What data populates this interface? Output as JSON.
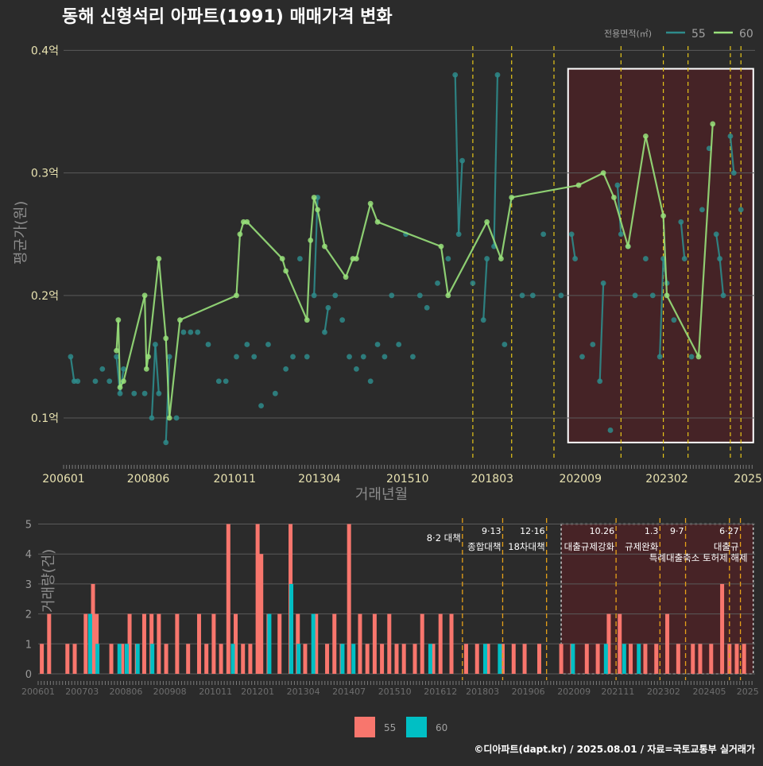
{
  "title": "동해 신형석리 아파트(1991) 매매가격 변화",
  "footer": "©디아파트(dapt.kr) / 2025.08.01 / 자료=국토교통부 실거래가",
  "colors": {
    "background": "#2b2b2b",
    "series_55": "#2e8b8b",
    "series_60": "#98e07a",
    "bar_55": "#f8766d",
    "bar_60": "#00bfc4",
    "policy_line": "#e6c619",
    "highlight_fill": "#4a2226"
  },
  "chart_data": [
    {
      "type": "line",
      "title": "동해 신형석리 아파트(1991) 매매가격 변화",
      "xlabel": "거래년월",
      "ylabel": "평균가(원)",
      "x_ticks": [
        "200601",
        "200806",
        "201011",
        "201304",
        "201510",
        "201803",
        "202009",
        "202302",
        "2025"
      ],
      "y_ticks": [
        {
          "v": 0.1,
          "label": "0.1억"
        },
        {
          "v": 0.2,
          "label": "0.2억"
        },
        {
          "v": 0.3,
          "label": "0.3억"
        },
        {
          "v": 0.4,
          "label": "0.4억"
        }
      ],
      "xlim": [
        2006.0,
        2025.6
      ],
      "ylim": [
        0.065,
        0.41
      ],
      "grid": true,
      "legend": {
        "title": "전용면적(㎡)",
        "position": "top-right",
        "entries": [
          "55",
          "60"
        ]
      },
      "series": [
        {
          "name": "55",
          "values": [
            [
              2006.2,
              0.15
            ],
            [
              2006.3,
              0.13
            ],
            [
              2006.4,
              0.13
            ],
            [
              2006.9,
              0.13
            ],
            [
              2007.1,
              0.14
            ],
            [
              2007.3,
              0.13
            ],
            [
              2007.5,
              0.15
            ],
            [
              2007.6,
              0.12
            ],
            [
              2007.7,
              0.14
            ],
            [
              2008.0,
              0.12
            ],
            [
              2008.3,
              0.12
            ],
            [
              2008.5,
              0.1
            ],
            [
              2008.6,
              0.16
            ],
            [
              2008.7,
              0.12
            ],
            [
              2008.9,
              0.08
            ],
            [
              2009.0,
              0.15
            ],
            [
              2009.2,
              0.1
            ],
            [
              2009.4,
              0.17
            ],
            [
              2009.6,
              0.17
            ],
            [
              2009.8,
              0.17
            ],
            [
              2010.1,
              0.16
            ],
            [
              2010.4,
              0.13
            ],
            [
              2010.6,
              0.13
            ],
            [
              2010.9,
              0.15
            ],
            [
              2011.2,
              0.16
            ],
            [
              2011.4,
              0.15
            ],
            [
              2011.6,
              0.11
            ],
            [
              2011.8,
              0.16
            ],
            [
              2012.0,
              0.12
            ],
            [
              2012.3,
              0.14
            ],
            [
              2012.5,
              0.15
            ],
            [
              2012.7,
              0.23
            ],
            [
              2012.9,
              0.15
            ],
            [
              2013.1,
              0.2
            ],
            [
              2013.2,
              0.28
            ],
            [
              2013.4,
              0.17
            ],
            [
              2013.5,
              0.19
            ],
            [
              2013.7,
              0.2
            ],
            [
              2013.9,
              0.18
            ],
            [
              2014.1,
              0.15
            ],
            [
              2014.3,
              0.14
            ],
            [
              2014.5,
              0.15
            ],
            [
              2014.7,
              0.13
            ],
            [
              2014.9,
              0.16
            ],
            [
              2015.1,
              0.15
            ],
            [
              2015.3,
              0.2
            ],
            [
              2015.5,
              0.16
            ],
            [
              2015.7,
              0.25
            ],
            [
              2015.9,
              0.15
            ],
            [
              2016.1,
              0.2
            ],
            [
              2016.3,
              0.19
            ],
            [
              2016.6,
              0.21
            ],
            [
              2016.9,
              0.23
            ],
            [
              2017.1,
              0.38
            ],
            [
              2017.2,
              0.25
            ],
            [
              2017.3,
              0.31
            ],
            [
              2017.6,
              0.21
            ],
            [
              2017.9,
              0.18
            ],
            [
              2018.0,
              0.23
            ],
            [
              2018.2,
              0.24
            ],
            [
              2018.3,
              0.38
            ],
            [
              2018.5,
              0.16
            ],
            [
              2019.0,
              0.2
            ],
            [
              2019.3,
              0.2
            ],
            [
              2019.6,
              0.25
            ],
            [
              2020.1,
              0.2
            ],
            [
              2020.4,
              0.25
            ],
            [
              2020.5,
              0.23
            ],
            [
              2020.7,
              0.15
            ],
            [
              2021.0,
              0.16
            ],
            [
              2021.2,
              0.13
            ],
            [
              2021.3,
              0.21
            ],
            [
              2021.5,
              0.09
            ],
            [
              2021.7,
              0.29
            ],
            [
              2021.8,
              0.25
            ],
            [
              2022.0,
              0.24
            ],
            [
              2022.2,
              0.2
            ],
            [
              2022.5,
              0.23
            ],
            [
              2022.7,
              0.2
            ],
            [
              2022.9,
              0.15
            ],
            [
              2023.0,
              0.23
            ],
            [
              2023.1,
              0.21
            ],
            [
              2023.3,
              0.18
            ],
            [
              2023.5,
              0.26
            ],
            [
              2023.6,
              0.23
            ],
            [
              2023.8,
              0.15
            ],
            [
              2024.1,
              0.27
            ],
            [
              2024.3,
              0.32
            ],
            [
              2024.5,
              0.25
            ],
            [
              2024.6,
              0.23
            ],
            [
              2024.7,
              0.2
            ],
            [
              2024.9,
              0.33
            ],
            [
              2025.0,
              0.3
            ],
            [
              2025.2,
              0.27
            ]
          ]
        },
        {
          "name": "60",
          "values": [
            [
              2007.5,
              0.155
            ],
            [
              2007.55,
              0.18
            ],
            [
              2007.6,
              0.125
            ],
            [
              2007.7,
              0.13
            ],
            [
              2008.3,
              0.2
            ],
            [
              2008.35,
              0.14
            ],
            [
              2008.4,
              0.15
            ],
            [
              2008.7,
              0.23
            ],
            [
              2008.9,
              0.165
            ],
            [
              2009.0,
              0.1
            ],
            [
              2009.3,
              0.18
            ],
            [
              2010.9,
              0.2
            ],
            [
              2011.0,
              0.25
            ],
            [
              2011.1,
              0.26
            ],
            [
              2011.2,
              0.26
            ],
            [
              2012.2,
              0.23
            ],
            [
              2012.3,
              0.22
            ],
            [
              2012.9,
              0.18
            ],
            [
              2013.0,
              0.245
            ],
            [
              2013.1,
              0.28
            ],
            [
              2013.2,
              0.27
            ],
            [
              2013.4,
              0.24
            ],
            [
              2014.0,
              0.215
            ],
            [
              2014.2,
              0.23
            ],
            [
              2014.3,
              0.23
            ],
            [
              2014.7,
              0.275
            ],
            [
              2014.9,
              0.26
            ],
            [
              2016.7,
              0.24
            ],
            [
              2016.9,
              0.2
            ],
            [
              2018.0,
              0.26
            ],
            [
              2018.4,
              0.23
            ],
            [
              2018.7,
              0.28
            ],
            [
              2020.6,
              0.29
            ],
            [
              2021.3,
              0.3
            ],
            [
              2021.6,
              0.28
            ],
            [
              2022.0,
              0.24
            ],
            [
              2022.5,
              0.33
            ],
            [
              2023.0,
              0.265
            ],
            [
              2023.1,
              0.2
            ],
            [
              2024.0,
              0.15
            ],
            [
              2024.4,
              0.34
            ]
          ]
        }
      ],
      "policy_lines_x": [
        2017.6,
        2018.7,
        2019.9,
        2021.8,
        2023.0,
        2023.7,
        2024.9,
        2025.2
      ],
      "highlight_range": {
        "x": [
          2020.3,
          2025.55
        ],
        "y": [
          0.08,
          0.385
        ]
      }
    },
    {
      "type": "bar",
      "xlabel": "",
      "ylabel": "거래량(건)",
      "x_ticks": [
        "200601",
        "200703",
        "200806",
        "200908",
        "201011",
        "201201",
        "201304",
        "201407",
        "201510",
        "201612",
        "201803",
        "201906",
        "202009",
        "202111",
        "202302",
        "202405",
        "2025"
      ],
      "y_ticks": [
        0,
        1,
        2,
        3,
        4,
        5
      ],
      "xlim": [
        2006.0,
        2025.6
      ],
      "ylim": [
        0,
        5.2
      ],
      "legend": {
        "position": "bottom",
        "entries": [
          "55",
          "60"
        ]
      },
      "series": [
        {
          "name": "55",
          "values": [
            [
              2006.1,
              1
            ],
            [
              2006.3,
              2
            ],
            [
              2006.8,
              1
            ],
            [
              2007.0,
              1
            ],
            [
              2007.3,
              2
            ],
            [
              2007.5,
              3
            ],
            [
              2007.6,
              2
            ],
            [
              2008.0,
              1
            ],
            [
              2008.3,
              1
            ],
            [
              2008.5,
              2
            ],
            [
              2008.7,
              1
            ],
            [
              2008.9,
              2
            ],
            [
              2009.1,
              2
            ],
            [
              2009.3,
              2
            ],
            [
              2009.5,
              1
            ],
            [
              2009.8,
              2
            ],
            [
              2010.1,
              1
            ],
            [
              2010.4,
              2
            ],
            [
              2010.6,
              1
            ],
            [
              2010.8,
              2
            ],
            [
              2011.0,
              1
            ],
            [
              2011.2,
              5
            ],
            [
              2011.4,
              2
            ],
            [
              2011.6,
              1
            ],
            [
              2011.8,
              1
            ],
            [
              2012.0,
              5
            ],
            [
              2012.1,
              4
            ],
            [
              2012.3,
              2
            ],
            [
              2012.6,
              2
            ],
            [
              2012.9,
              5
            ],
            [
              2013.1,
              2
            ],
            [
              2013.3,
              1
            ],
            [
              2013.6,
              2
            ],
            [
              2013.9,
              1
            ],
            [
              2014.1,
              2
            ],
            [
              2014.3,
              1
            ],
            [
              2014.5,
              5
            ],
            [
              2014.8,
              2
            ],
            [
              2015.0,
              1
            ],
            [
              2015.2,
              2
            ],
            [
              2015.4,
              1
            ],
            [
              2015.6,
              2
            ],
            [
              2015.8,
              1
            ],
            [
              2016.0,
              1
            ],
            [
              2016.3,
              1
            ],
            [
              2016.5,
              2
            ],
            [
              2016.8,
              1
            ],
            [
              2017.0,
              2
            ],
            [
              2017.3,
              2
            ],
            [
              2017.7,
              1
            ],
            [
              2018.0,
              1
            ],
            [
              2018.3,
              1
            ],
            [
              2018.7,
              1
            ],
            [
              2019.0,
              1
            ],
            [
              2019.3,
              1
            ],
            [
              2019.7,
              1
            ],
            [
              2020.3,
              1
            ],
            [
              2020.6,
              1
            ],
            [
              2021.0,
              1
            ],
            [
              2021.3,
              1
            ],
            [
              2021.6,
              2
            ],
            [
              2021.9,
              2
            ],
            [
              2022.2,
              1
            ],
            [
              2022.6,
              1
            ],
            [
              2022.9,
              1
            ],
            [
              2023.2,
              2
            ],
            [
              2023.5,
              1
            ],
            [
              2023.9,
              1
            ],
            [
              2024.1,
              1
            ],
            [
              2024.4,
              1
            ],
            [
              2024.7,
              3
            ],
            [
              2024.9,
              1
            ],
            [
              2025.1,
              1
            ],
            [
              2025.3,
              1
            ]
          ]
        },
        {
          "name": "60",
          "values": [
            [
              2007.4,
              2
            ],
            [
              2007.6,
              1
            ],
            [
              2008.2,
              1
            ],
            [
              2008.4,
              1
            ],
            [
              2008.7,
              1
            ],
            [
              2009.1,
              1
            ],
            [
              2011.3,
              1
            ],
            [
              2012.3,
              2
            ],
            [
              2012.9,
              3
            ],
            [
              2013.1,
              1
            ],
            [
              2013.5,
              2
            ],
            [
              2014.3,
              1
            ],
            [
              2014.6,
              1
            ],
            [
              2016.7,
              1
            ],
            [
              2018.2,
              1
            ],
            [
              2018.6,
              1
            ],
            [
              2020.6,
              1
            ],
            [
              2021.5,
              1
            ],
            [
              2022.0,
              1
            ],
            [
              2022.4,
              1
            ]
          ]
        }
      ],
      "policy_lines_x": [
        2017.6,
        2018.7,
        2019.9,
        2021.8,
        2023.0,
        2023.7,
        2024.9,
        2025.2
      ],
      "annotations": [
        {
          "x": 2017.6,
          "date": "",
          "text": "8·2 대책"
        },
        {
          "x": 2018.7,
          "date": "9·13",
          "text": "종합대책"
        },
        {
          "x": 2019.9,
          "date": "12·16",
          "text": "18차대책"
        },
        {
          "x": 2021.8,
          "date": "10.26",
          "text": "대출규제강화"
        },
        {
          "x": 2023.0,
          "date": "1.3",
          "text": "규제완화"
        },
        {
          "x": 2023.7,
          "date": "9·7",
          "text": "특례대출축소 토허제 해제"
        },
        {
          "x": 2025.2,
          "date": "6·27",
          "text": "대출규"
        }
      ],
      "highlight_range": [
        2020.3,
        2025.55
      ]
    }
  ]
}
